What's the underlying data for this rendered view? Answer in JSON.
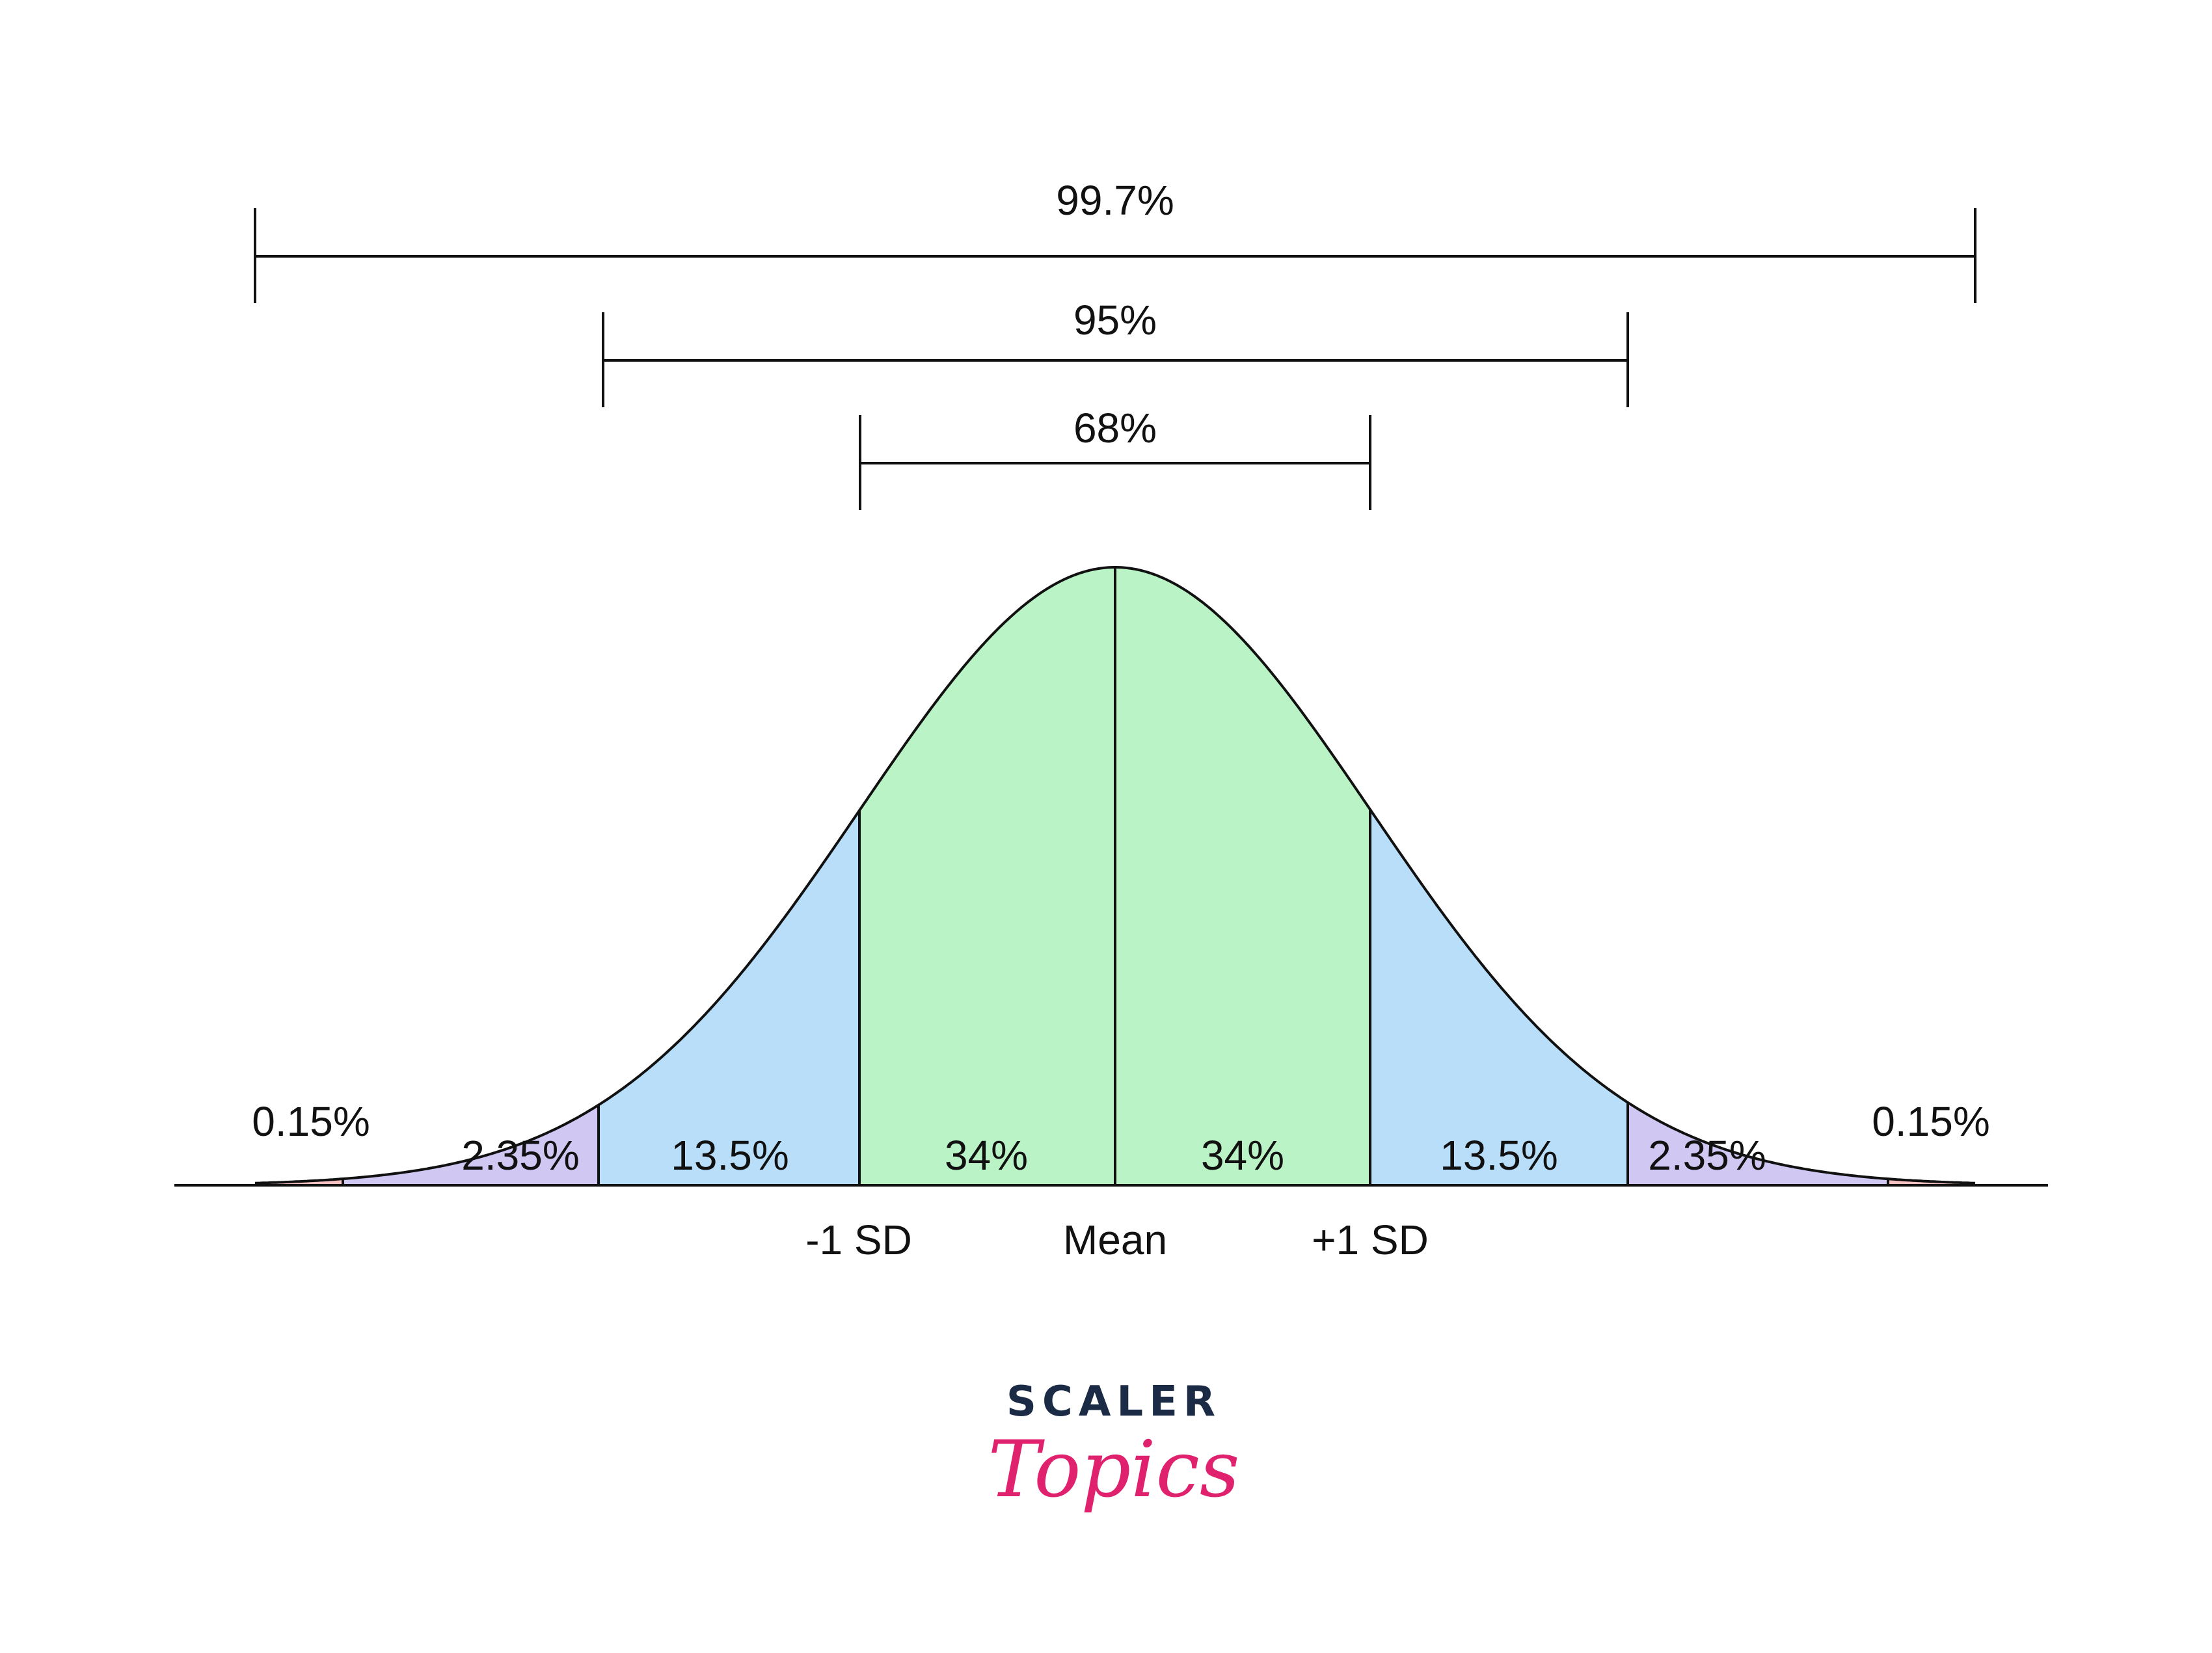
{
  "diagram": {
    "regions": [
      {
        "label": "0.15%",
        "color": "#f7c1c1"
      },
      {
        "label": "2.35%",
        "color": "#d0c8f2"
      },
      {
        "label": "13.5%",
        "color": "#b8defa"
      },
      {
        "label": "34%",
        "color": "#baf3c5"
      },
      {
        "label": "34%",
        "color": "#baf3c5"
      },
      {
        "label": "13.5%",
        "color": "#b8defa"
      },
      {
        "label": "2.35%",
        "color": "#d0c8f2"
      },
      {
        "label": "0.15%",
        "color": "#f7c1c1"
      }
    ],
    "axis_labels": {
      "minus_1sd": "-1 SD",
      "mean": "Mean",
      "plus_1sd": "+1 SD"
    },
    "brackets": [
      {
        "label": "99.7%"
      },
      {
        "label": "95%"
      },
      {
        "label": "68%"
      }
    ],
    "line_color": "#111111"
  },
  "logo": {
    "top": "SCALER",
    "bottom": "Topics",
    "top_color": "#1b2b45",
    "bottom_color": "#e0226e"
  }
}
